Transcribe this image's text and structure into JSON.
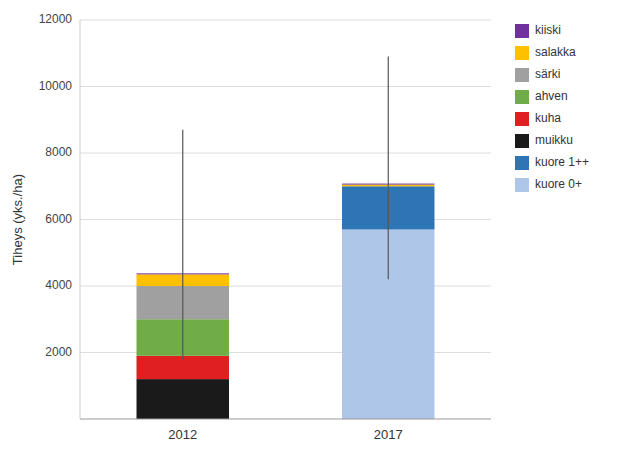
{
  "chart_data": {
    "type": "bar",
    "stacked": true,
    "categories": [
      "2012",
      "2017"
    ],
    "series": [
      {
        "name": "kuore 0+",
        "color": "#aec6e8",
        "values": [
          0,
          5700
        ]
      },
      {
        "name": "kuore 1++",
        "color": "#2e75b6",
        "values": [
          0,
          1300
        ]
      },
      {
        "name": "muikku",
        "color": "#1a1a1a",
        "values": [
          1200,
          0
        ]
      },
      {
        "name": "kuha",
        "color": "#e02020",
        "values": [
          700,
          0
        ]
      },
      {
        "name": "ahven",
        "color": "#70ad47",
        "values": [
          1100,
          0
        ]
      },
      {
        "name": "särki",
        "color": "#a0a0a0",
        "values": [
          1000,
          0
        ]
      },
      {
        "name": "salakka",
        "color": "#ffc000",
        "values": [
          350,
          50
        ]
      },
      {
        "name": "kiiski",
        "color": "#7030a0",
        "values": [
          30,
          30
        ]
      }
    ],
    "error_bars": [
      {
        "low": 1800,
        "high": 8700
      },
      {
        "low": 4200,
        "high": 10900
      }
    ],
    "ylabel": "Tiheys (yks./ha)",
    "ylim": [
      0,
      12000
    ],
    "yticks": [
      2000,
      4000,
      6000,
      8000,
      10000,
      12000
    ],
    "grid": true,
    "legend": "upper right"
  }
}
